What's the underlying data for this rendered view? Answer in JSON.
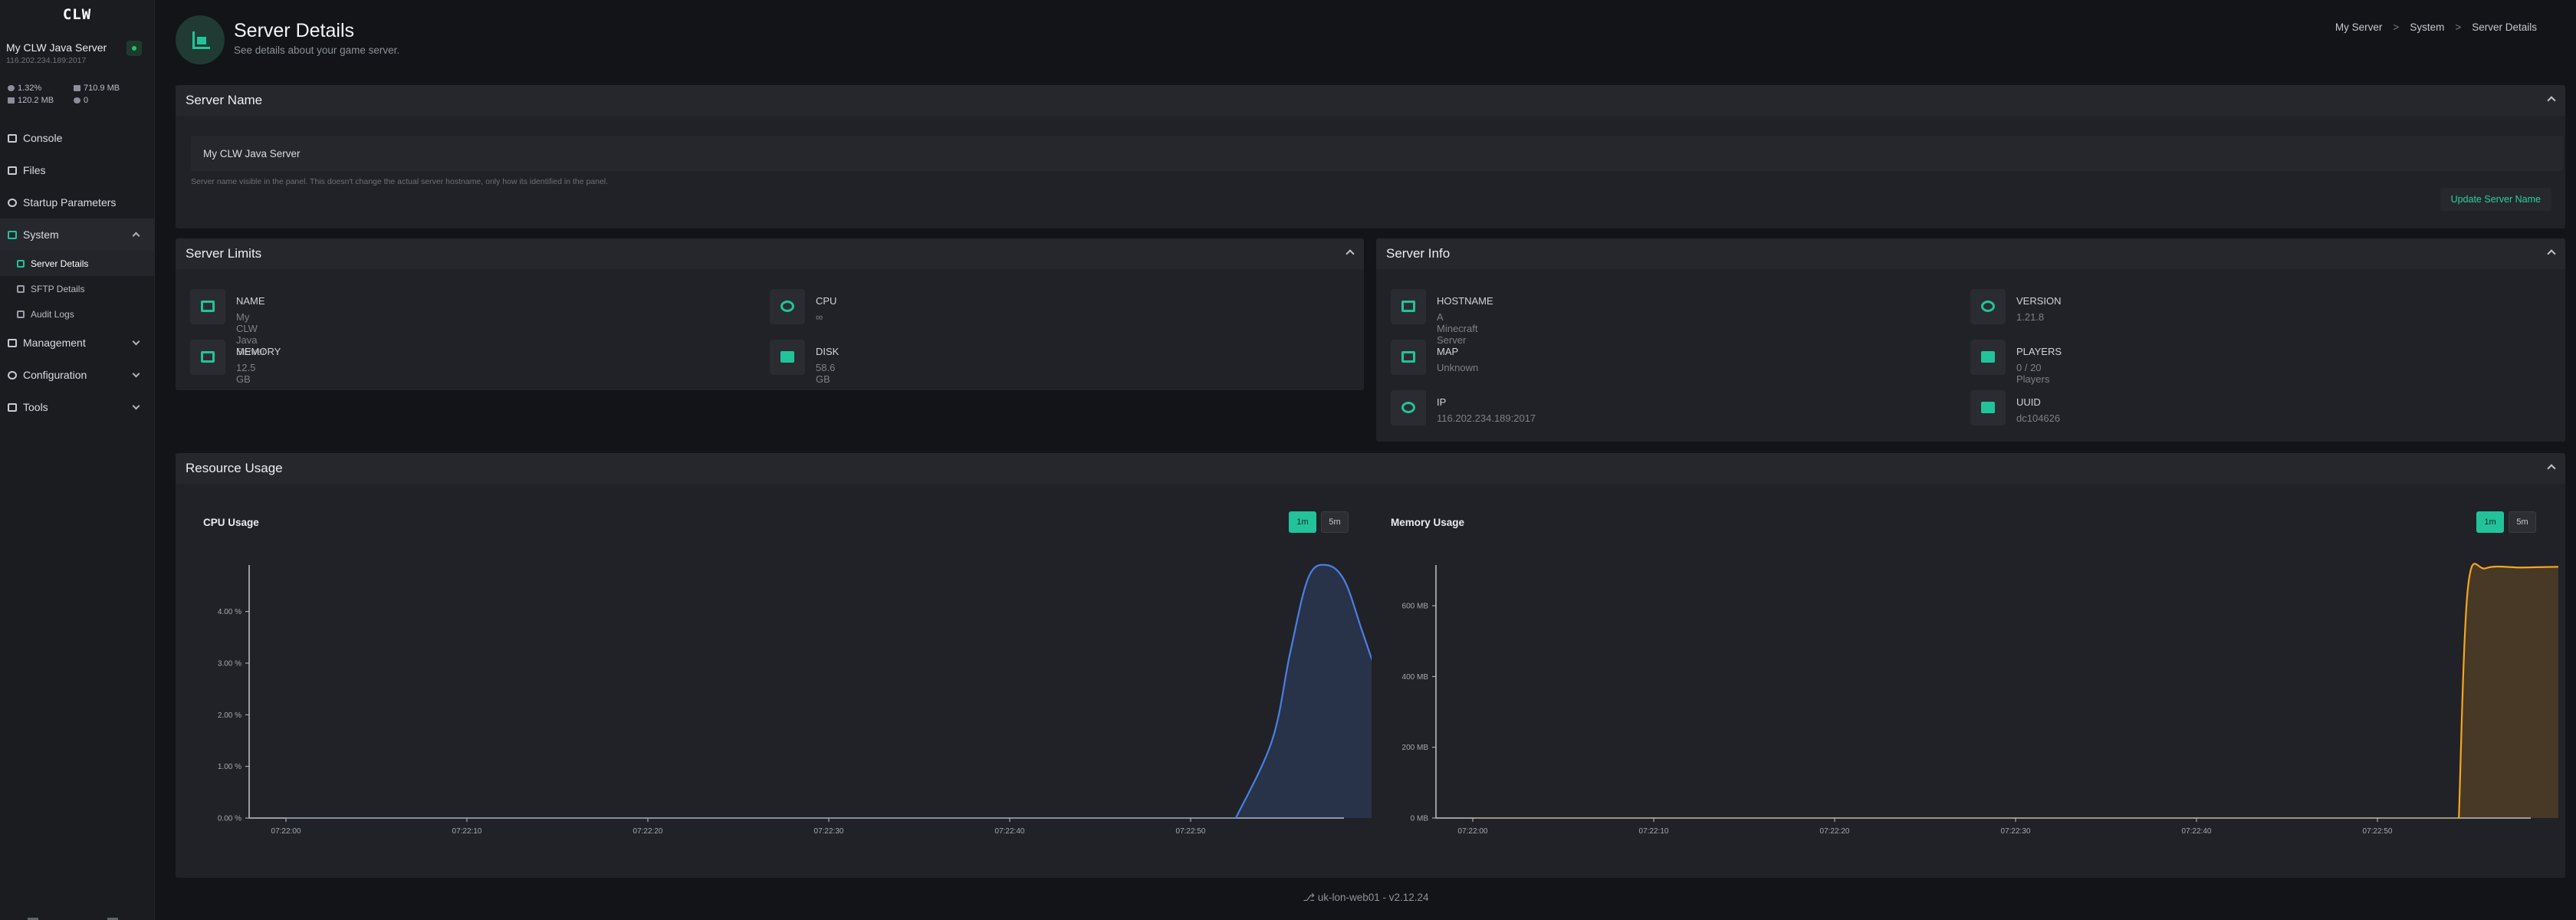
{
  "sidebar": {
    "logo": "CLW",
    "server_name": "My CLW Java Server",
    "server_address": "116.202.234.189:2017",
    "stats": {
      "cpu": "1.32%",
      "memory": "710.9 MB",
      "disk": "120.2 MB",
      "players": "0"
    },
    "nav": {
      "console": "Console",
      "files": "Files",
      "startup": "Startup Parameters",
      "system": "System",
      "server_details": "Server Details",
      "sftp_details": "SFTP Details",
      "audit_logs": "Audit Logs",
      "management": "Management",
      "configuration": "Configuration",
      "tools": "Tools"
    }
  },
  "header": {
    "title": "Server Details",
    "subtitle": "See details about your game server.",
    "breadcrumbs": [
      "My Server",
      "System",
      "Server Details"
    ],
    "separator": ">"
  },
  "server_name_panel": {
    "title": "Server Name",
    "input_value": "My CLW Java Server",
    "help": "Server name visible in the panel. This doesn't change the actual server hostname, only how its identified in the panel.",
    "button": "Update Server Name"
  },
  "limits_panel": {
    "title": "Server Limits",
    "items": [
      {
        "label": "NAME",
        "value": "My CLW Java Server"
      },
      {
        "label": "CPU",
        "value": "∞"
      },
      {
        "label": "MEMORY",
        "value": "12.5 GB"
      },
      {
        "label": "DISK",
        "value": "58.6 GB"
      }
    ]
  },
  "info_panel": {
    "title": "Server Info",
    "items": [
      {
        "label": "HOSTNAME",
        "value": "A Minecraft Server"
      },
      {
        "label": "VERSION",
        "value": "1.21.8"
      },
      {
        "label": "MAP",
        "value": "Unknown"
      },
      {
        "label": "PLAYERS",
        "value": "0 / 20 Players"
      },
      {
        "label": "IP",
        "value": "116.202.234.189:2017"
      },
      {
        "label": "UUID",
        "value": "dc104626"
      }
    ]
  },
  "usage_panel": {
    "title": "Resource Usage",
    "toggle_on": "1m",
    "toggle_off": "5m"
  },
  "chart_data": [
    {
      "type": "area",
      "title": "CPU Usage",
      "color": "#4a7fe6",
      "x_ticks": [
        "07:22:00",
        "07:22:10",
        "07:22:20",
        "07:22:30",
        "07:22:40",
        "07:22:50"
      ],
      "y_ticks": [
        "0.00 %",
        "1.00 %",
        "2.00 %",
        "3.00 %",
        "4.00 %"
      ],
      "ylim": [
        0,
        4.9
      ],
      "x_seconds": [
        0,
        10,
        20,
        30,
        40,
        50,
        52.5,
        54.5,
        55.5,
        56.5,
        57.5,
        58.5,
        59.5,
        60.5,
        61.5,
        62.5
      ],
      "values": [
        0,
        0,
        0,
        0,
        0,
        0,
        0,
        1.5,
        3.2,
        4.65,
        4.9,
        4.6,
        3.6,
        2.6,
        1.8,
        1.3
      ]
    },
    {
      "type": "area",
      "title": "Memory Usage",
      "color": "#f5a623",
      "x_ticks": [
        "07:22:00",
        "07:22:10",
        "07:22:20",
        "07:22:30",
        "07:22:40",
        "07:22:50"
      ],
      "y_ticks": [
        "0 MB",
        "200 MB",
        "400 MB",
        "600 MB"
      ],
      "ylim": [
        0,
        715
      ],
      "x_seconds": [
        0,
        10,
        20,
        30,
        40,
        50,
        54.5,
        55.0,
        56.0,
        58.0,
        60.0,
        62.0
      ],
      "values": [
        0,
        0,
        0,
        0,
        0,
        0,
        0,
        650,
        706,
        708,
        710,
        712
      ]
    }
  ],
  "footer": "uk-lon-web01 - v2.12.24"
}
